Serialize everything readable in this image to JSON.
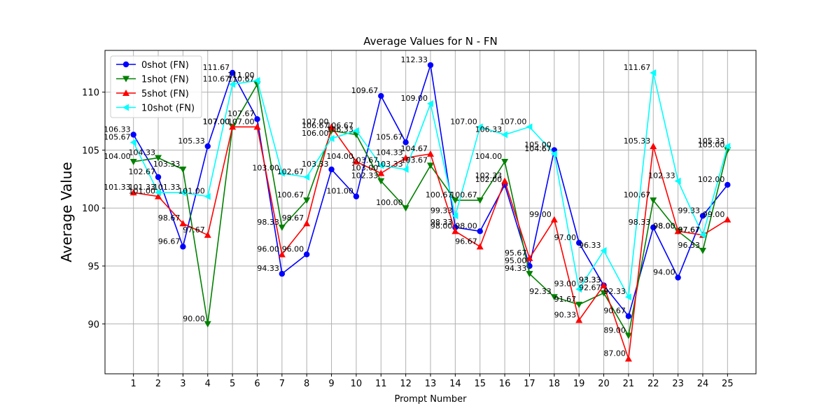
{
  "chart_data": {
    "type": "line",
    "title": "Average Values for N - FN",
    "xlabel": "Prompt Number",
    "ylabel": "Average Value",
    "x": [
      1,
      2,
      3,
      4,
      5,
      6,
      7,
      8,
      9,
      10,
      11,
      12,
      13,
      14,
      15,
      16,
      17,
      18,
      19,
      20,
      21,
      22,
      23,
      24,
      25
    ],
    "xlim": [
      -0.15,
      26.15
    ],
    "ylim": [
      85.7,
      113.6
    ],
    "yticks": [
      90,
      95,
      100,
      105,
      110
    ],
    "grid": true,
    "legend_position": "top-left",
    "series": [
      {
        "name": "0shot (FN)",
        "color": "#0000ff",
        "marker": "circle",
        "values": [
          106.33,
          102.67,
          96.67,
          105.33,
          111.67,
          107.67,
          94.33,
          96.0,
          103.33,
          101.0,
          109.67,
          105.67,
          112.33,
          98.33,
          98.0,
          102.0,
          95.0,
          105.0,
          97.0,
          93.33,
          90.67,
          98.33,
          94.0,
          99.33,
          102.0
        ]
      },
      {
        "name": "1shot (FN)",
        "color": "#008000",
        "marker": "triangle-down",
        "values": [
          104.0,
          104.33,
          103.33,
          90.0,
          107.0,
          110.67,
          98.33,
          100.67,
          106.67,
          106.33,
          102.33,
          100.0,
          103.67,
          100.67,
          100.67,
          104.0,
          94.33,
          92.33,
          91.67,
          92.67,
          89.0,
          100.67,
          98.0,
          96.33,
          105.0
        ]
      },
      {
        "name": "5shot (FN)",
        "color": "#ff0000",
        "marker": "triangle-up",
        "values": [
          101.33,
          101.0,
          98.67,
          97.67,
          107.0,
          107.0,
          96.0,
          98.67,
          107.0,
          104.0,
          103.0,
          104.33,
          104.67,
          98.0,
          96.67,
          102.33,
          95.67,
          99.0,
          90.33,
          93.33,
          87.0,
          105.33,
          98.0,
          97.67,
          99.0
        ]
      },
      {
        "name": "10shot (FN)",
        "color": "#00ffff",
        "marker": "triangle-left",
        "values": [
          105.67,
          101.33,
          101.33,
          101.0,
          110.67,
          111.0,
          103.0,
          102.67,
          106.0,
          106.67,
          103.67,
          103.33,
          109.0,
          99.33,
          107.0,
          106.33,
          107.0,
          104.67,
          93.0,
          96.33,
          92.33,
          111.67,
          102.33,
          97.67,
          105.33
        ]
      }
    ]
  }
}
